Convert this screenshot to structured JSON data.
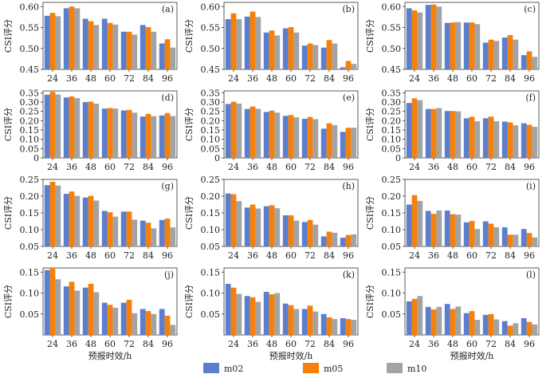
{
  "colors": {
    "m02": "#5b7fce",
    "m05": "#f6800a",
    "m10": "#a3a3a3"
  },
  "legend": [
    "m02",
    "m05",
    "m10"
  ],
  "xlabel": "预报时效/h",
  "ylabel": "CSI评分",
  "chart_data": [
    {
      "type": "bar",
      "label": "(a)",
      "categories": [
        "24",
        "36",
        "48",
        "60",
        "72",
        "84",
        "96"
      ],
      "ylim": [
        0.45,
        0.61
      ],
      "yticks": [
        "0.45",
        "0.50",
        "0.55",
        "0.60"
      ],
      "series": [
        {
          "name": "m02",
          "values": [
            0.578,
            0.596,
            0.571,
            0.571,
            0.54,
            0.556,
            0.512
          ]
        },
        {
          "name": "m05",
          "values": [
            0.585,
            0.6,
            0.565,
            0.561,
            0.54,
            0.551,
            0.522
          ]
        },
        {
          "name": "m10",
          "values": [
            0.577,
            0.596,
            0.556,
            0.557,
            0.533,
            0.54,
            0.502
          ]
        }
      ]
    },
    {
      "type": "bar",
      "label": "(b)",
      "categories": [
        "24",
        "36",
        "48",
        "60",
        "72",
        "84",
        "96"
      ],
      "ylim": [
        0.45,
        0.61
      ],
      "yticks": [
        "0.45",
        "0.50",
        "0.55",
        "0.60"
      ],
      "series": [
        {
          "name": "m02",
          "values": [
            0.57,
            0.576,
            0.538,
            0.548,
            0.507,
            0.502,
            0.455
          ]
        },
        {
          "name": "m05",
          "values": [
            0.584,
            0.588,
            0.543,
            0.551,
            0.512,
            0.52,
            0.47
          ]
        },
        {
          "name": "m10",
          "values": [
            0.57,
            0.575,
            0.531,
            0.538,
            0.508,
            0.512,
            0.463
          ]
        }
      ]
    },
    {
      "type": "bar",
      "label": "(c)",
      "categories": [
        "24",
        "36",
        "48",
        "60",
        "72",
        "84",
        "96"
      ],
      "ylim": [
        0.45,
        0.61
      ],
      "yticks": [
        "0.45",
        "0.50",
        "0.55",
        "0.60"
      ],
      "series": [
        {
          "name": "m02",
          "values": [
            0.596,
            0.604,
            0.561,
            0.562,
            0.514,
            0.526,
            0.484
          ]
        },
        {
          "name": "m05",
          "values": [
            0.591,
            0.605,
            0.562,
            0.562,
            0.521,
            0.532,
            0.493
          ]
        },
        {
          "name": "m10",
          "values": [
            0.586,
            0.6,
            0.563,
            0.558,
            0.518,
            0.521,
            0.48
          ]
        }
      ]
    },
    {
      "type": "bar",
      "label": "(d)",
      "categories": [
        "24",
        "36",
        "48",
        "60",
        "72",
        "84",
        "96"
      ],
      "ylim": [
        0.0,
        0.36
      ],
      "yticks": [
        "0",
        "0.05",
        "0.10",
        "0.15",
        "0.20",
        "0.25",
        "0.30",
        "0.35"
      ],
      "series": [
        {
          "name": "m02",
          "values": [
            0.34,
            0.325,
            0.3,
            0.265,
            0.255,
            0.222,
            0.228
          ]
        },
        {
          "name": "m05",
          "values": [
            0.355,
            0.33,
            0.302,
            0.268,
            0.258,
            0.236,
            0.241
          ]
        },
        {
          "name": "m10",
          "values": [
            0.341,
            0.321,
            0.291,
            0.265,
            0.243,
            0.224,
            0.225
          ]
        }
      ]
    },
    {
      "type": "bar",
      "label": "(e)",
      "categories": [
        "24",
        "36",
        "48",
        "60",
        "72",
        "84",
        "96"
      ],
      "ylim": [
        0.0,
        0.36
      ],
      "yticks": [
        "0",
        "0.05",
        "0.10",
        "0.15",
        "0.20",
        "0.25",
        "0.30",
        "0.35"
      ],
      "series": [
        {
          "name": "m02",
          "values": [
            0.29,
            0.263,
            0.247,
            0.226,
            0.21,
            0.157,
            0.14
          ]
        },
        {
          "name": "m05",
          "values": [
            0.302,
            0.276,
            0.254,
            0.23,
            0.22,
            0.186,
            0.162
          ]
        },
        {
          "name": "m10",
          "values": [
            0.292,
            0.264,
            0.243,
            0.218,
            0.208,
            0.176,
            0.162
          ]
        }
      ]
    },
    {
      "type": "bar",
      "label": "(f)",
      "categories": [
        "24",
        "36",
        "48",
        "60",
        "72",
        "84",
        "96"
      ],
      "ylim": [
        0.0,
        0.36
      ],
      "yticks": [
        "0",
        "0.05",
        "0.10",
        "0.15",
        "0.20",
        "0.25",
        "0.30",
        "0.35"
      ],
      "series": [
        {
          "name": "m02",
          "values": [
            0.295,
            0.263,
            0.252,
            0.213,
            0.213,
            0.195,
            0.186
          ]
        },
        {
          "name": "m05",
          "values": [
            0.32,
            0.263,
            0.252,
            0.221,
            0.222,
            0.191,
            0.178
          ]
        },
        {
          "name": "m10",
          "values": [
            0.31,
            0.268,
            0.25,
            0.197,
            0.197,
            0.175,
            0.167
          ]
        }
      ]
    },
    {
      "type": "bar",
      "label": "(g)",
      "categories": [
        "24",
        "36",
        "48",
        "60",
        "72",
        "84",
        "96"
      ],
      "ylim": [
        0.05,
        0.25
      ],
      "yticks": [
        "0.05",
        "0.10",
        "0.15",
        "0.20",
        "0.25"
      ],
      "series": [
        {
          "name": "m02",
          "values": [
            0.233,
            0.207,
            0.196,
            0.156,
            0.154,
            0.127,
            0.129
          ]
        },
        {
          "name": "m05",
          "values": [
            0.243,
            0.214,
            0.201,
            0.152,
            0.154,
            0.121,
            0.133
          ]
        },
        {
          "name": "m10",
          "values": [
            0.232,
            0.201,
            0.187,
            0.139,
            0.13,
            0.104,
            0.107
          ]
        }
      ]
    },
    {
      "type": "bar",
      "label": "(h)",
      "categories": [
        "24",
        "36",
        "48",
        "60",
        "72",
        "84",
        "96"
      ],
      "ylim": [
        0.05,
        0.25
      ],
      "yticks": [
        "0.05",
        "0.10",
        "0.15",
        "0.20",
        "0.25"
      ],
      "series": [
        {
          "name": "m02",
          "values": [
            0.208,
            0.166,
            0.17,
            0.143,
            0.123,
            0.08,
            0.076
          ]
        },
        {
          "name": "m05",
          "values": [
            0.206,
            0.175,
            0.173,
            0.143,
            0.129,
            0.094,
            0.084
          ]
        },
        {
          "name": "m10",
          "values": [
            0.185,
            0.163,
            0.164,
            0.127,
            0.115,
            0.091,
            0.086
          ]
        }
      ]
    },
    {
      "type": "bar",
      "label": "(i)",
      "categories": [
        "24",
        "36",
        "48",
        "60",
        "72",
        "84",
        "96"
      ],
      "ylim": [
        0.05,
        0.25
      ],
      "yticks": [
        "0.05",
        "0.10",
        "0.15",
        "0.20",
        "0.25"
      ],
      "series": [
        {
          "name": "m02",
          "values": [
            0.175,
            0.156,
            0.157,
            0.122,
            0.125,
            0.107,
            0.102
          ]
        },
        {
          "name": "m05",
          "values": [
            0.203,
            0.147,
            0.146,
            0.126,
            0.118,
            0.085,
            0.09
          ]
        },
        {
          "name": "m10",
          "values": [
            0.186,
            0.157,
            0.145,
            0.102,
            0.107,
            0.085,
            0.077
          ]
        }
      ]
    },
    {
      "type": "bar",
      "label": "(j)",
      "categories": [
        "24",
        "36",
        "48",
        "60",
        "72",
        "84",
        "96"
      ],
      "ylim": [
        0.0,
        0.16
      ],
      "yticks": [
        "0.05",
        "0.10",
        "0.15"
      ],
      "series": [
        {
          "name": "m02",
          "values": [
            0.155,
            0.116,
            0.113,
            0.077,
            0.077,
            0.062,
            0.062
          ]
        },
        {
          "name": "m05",
          "values": [
            0.16,
            0.127,
            0.122,
            0.072,
            0.084,
            0.057,
            0.046
          ]
        },
        {
          "name": "m10",
          "values": [
            0.133,
            0.106,
            0.102,
            0.065,
            0.052,
            0.05,
            0.024
          ]
        }
      ]
    },
    {
      "type": "bar",
      "label": "(k)",
      "categories": [
        "24",
        "36",
        "48",
        "60",
        "72",
        "84",
        "96"
      ],
      "ylim": [
        0.0,
        0.16
      ],
      "yticks": [
        "0.05",
        "0.10",
        "0.15"
      ],
      "series": [
        {
          "name": "m02",
          "values": [
            0.122,
            0.093,
            0.103,
            0.075,
            0.062,
            0.05,
            0.04
          ]
        },
        {
          "name": "m05",
          "values": [
            0.113,
            0.09,
            0.097,
            0.071,
            0.07,
            0.042,
            0.038
          ]
        },
        {
          "name": "m10",
          "values": [
            0.098,
            0.079,
            0.1,
            0.062,
            0.056,
            0.038,
            0.036
          ]
        }
      ]
    },
    {
      "type": "bar",
      "label": "(l)",
      "categories": [
        "24",
        "36",
        "48",
        "60",
        "72",
        "84",
        "96"
      ],
      "ylim": [
        0.0,
        0.16
      ],
      "yticks": [
        "0.05",
        "0.10",
        "0.15"
      ],
      "series": [
        {
          "name": "m02",
          "values": [
            0.08,
            0.067,
            0.074,
            0.052,
            0.048,
            0.033,
            0.04
          ]
        },
        {
          "name": "m05",
          "values": [
            0.086,
            0.061,
            0.062,
            0.057,
            0.05,
            0.022,
            0.031
          ]
        },
        {
          "name": "m10",
          "values": [
            0.093,
            0.067,
            0.068,
            0.036,
            0.037,
            0.028,
            0.025
          ]
        }
      ]
    }
  ]
}
